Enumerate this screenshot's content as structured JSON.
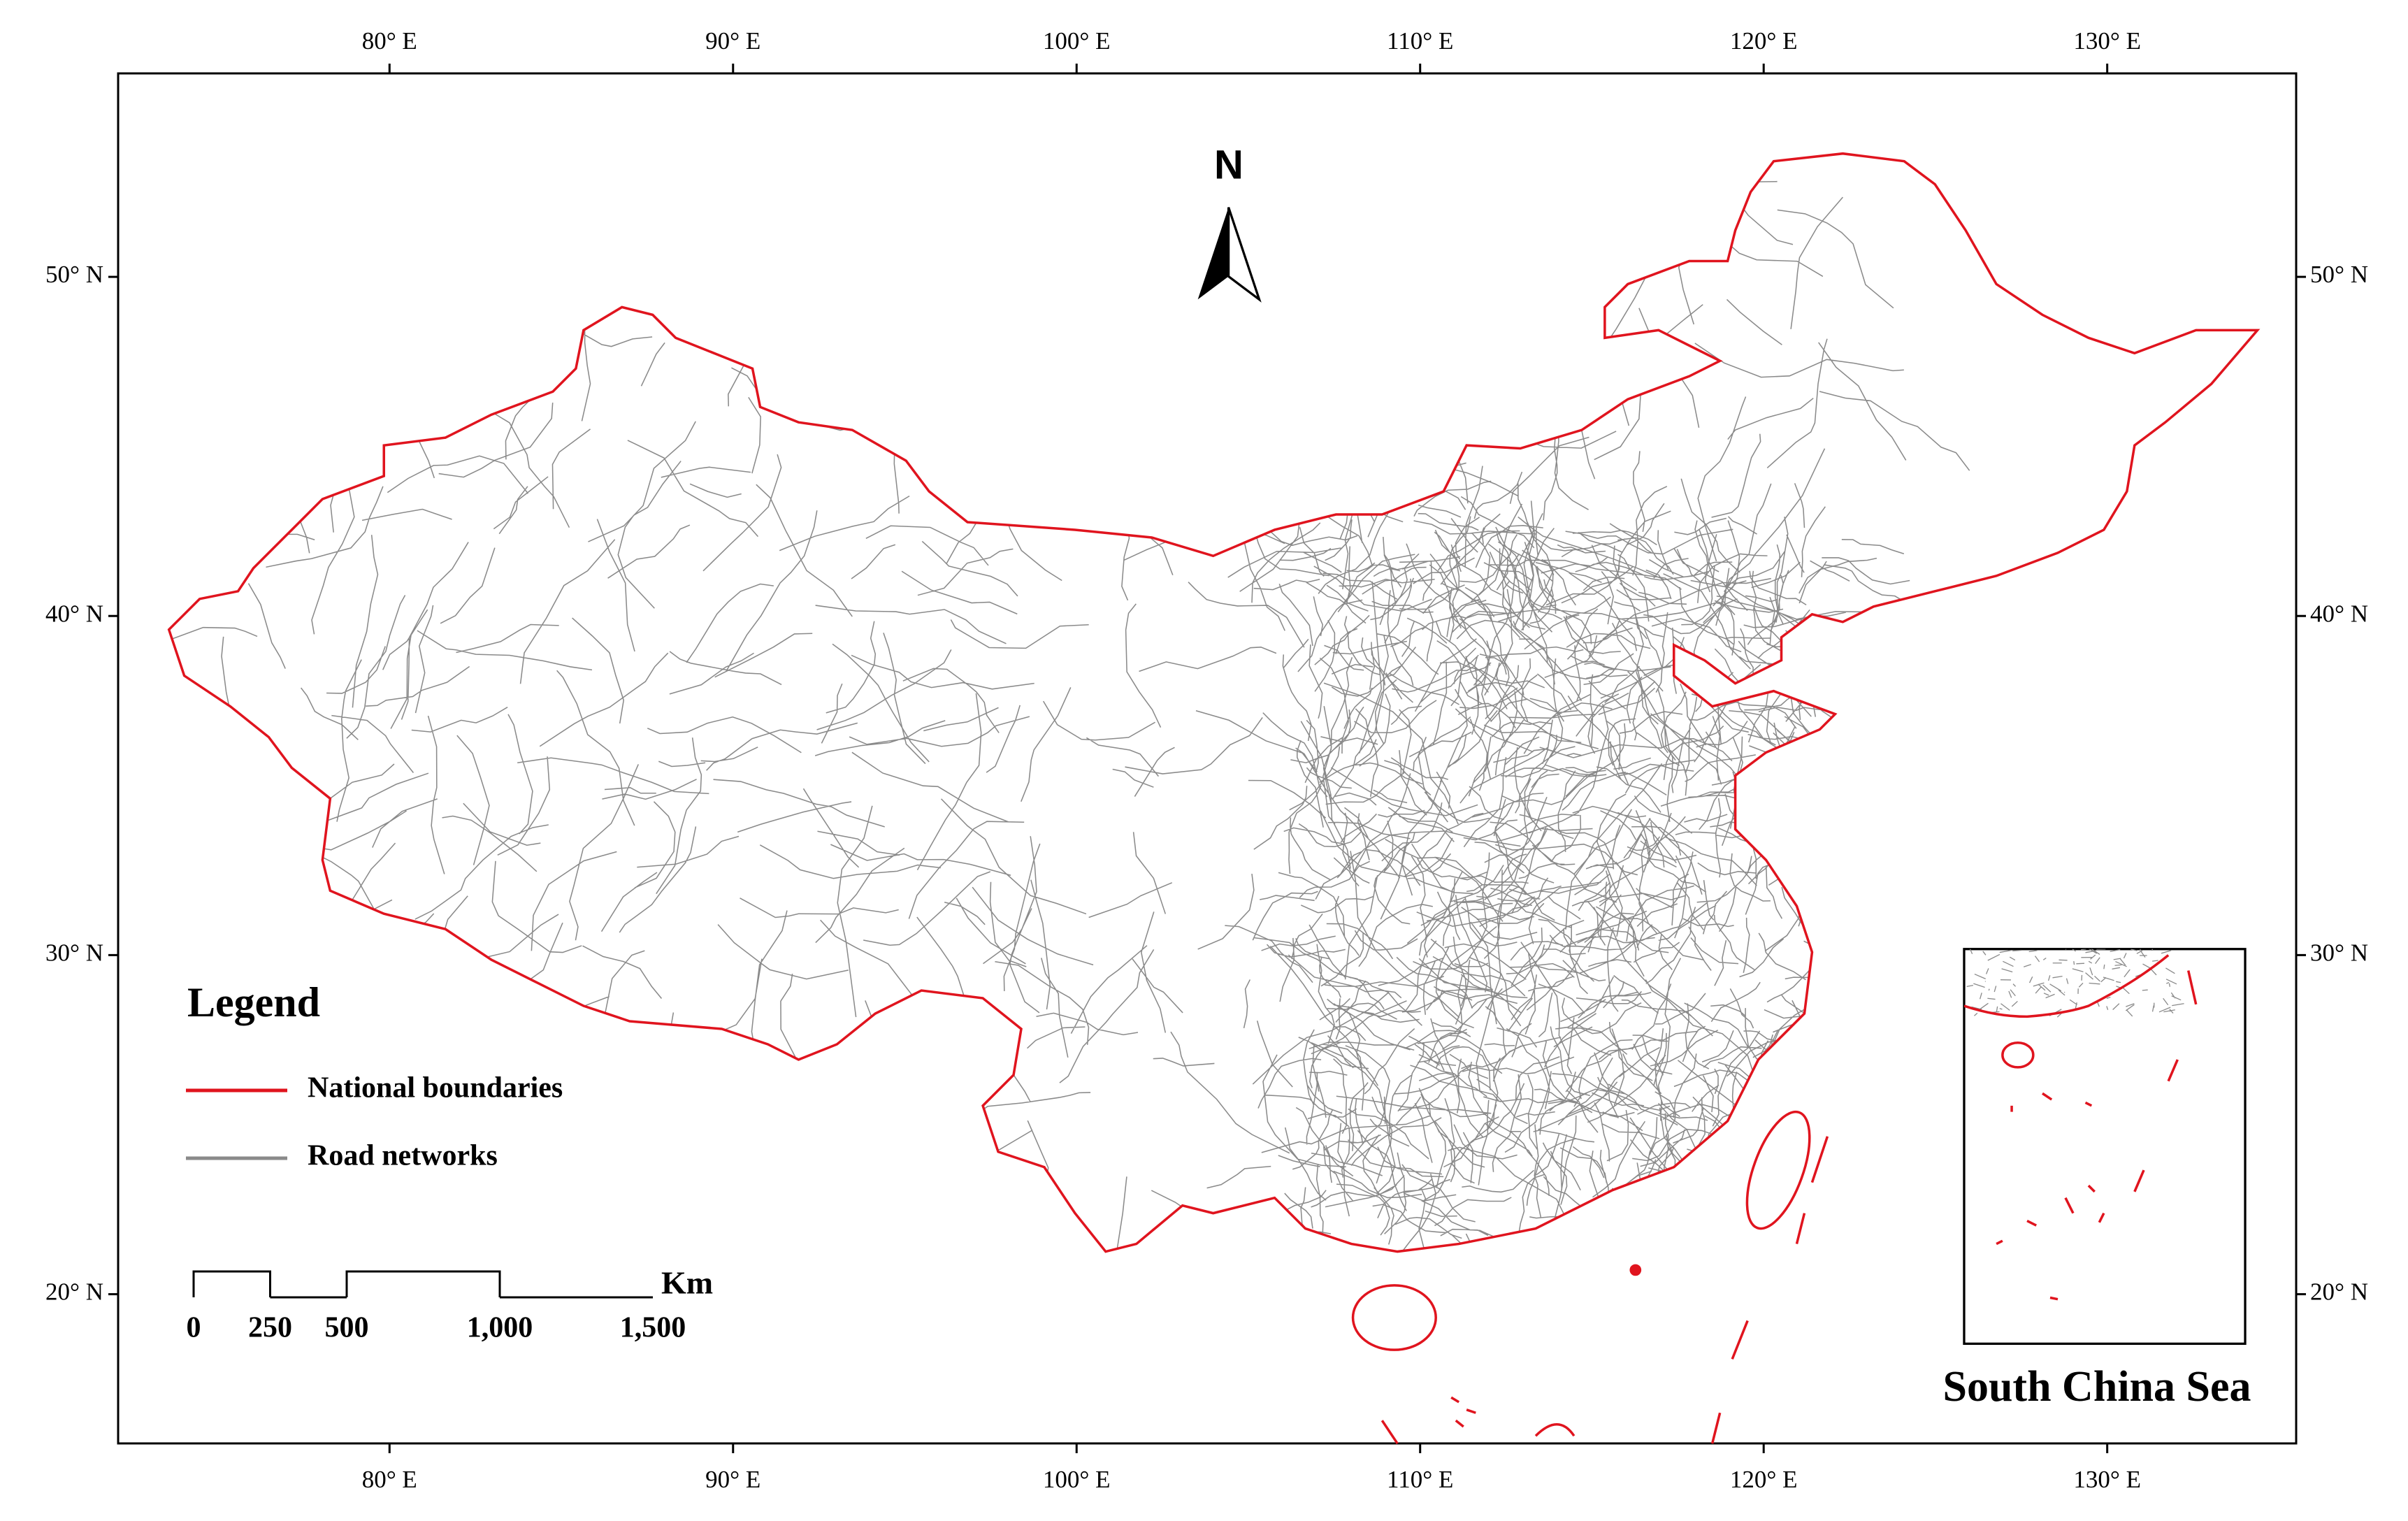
{
  "map": {
    "north_label": "N",
    "xlim": [
      72.1,
      135.5
    ],
    "ylim": [
      15.6,
      56.0
    ],
    "xticks": [
      {
        "value": 80,
        "label": "80° E"
      },
      {
        "value": 90,
        "label": "90° E"
      },
      {
        "value": 100,
        "label": "100° E"
      },
      {
        "value": 110,
        "label": "110° E"
      },
      {
        "value": 120,
        "label": "120° E"
      },
      {
        "value": 130,
        "label": "130° E"
      }
    ],
    "yticks": [
      {
        "value": 50,
        "label": "50° N"
      },
      {
        "value": 40,
        "label": "40° N"
      },
      {
        "value": 30,
        "label": "30° N"
      },
      {
        "value": 20,
        "label": "20° N"
      }
    ],
    "legend": {
      "title": "Legend",
      "items": [
        {
          "name": "National boundaries",
          "color": "#e0141e"
        },
        {
          "name": "Road networks",
          "color": "#8a8a8a"
        }
      ]
    },
    "scale_bar": {
      "unit": "Km",
      "ticks": [
        0,
        250,
        500,
        {
          "value": 1000,
          "label": "1,000"
        },
        {
          "value": 1500,
          "label": "1,500"
        }
      ]
    },
    "inset_label": "South China Sea"
  }
}
